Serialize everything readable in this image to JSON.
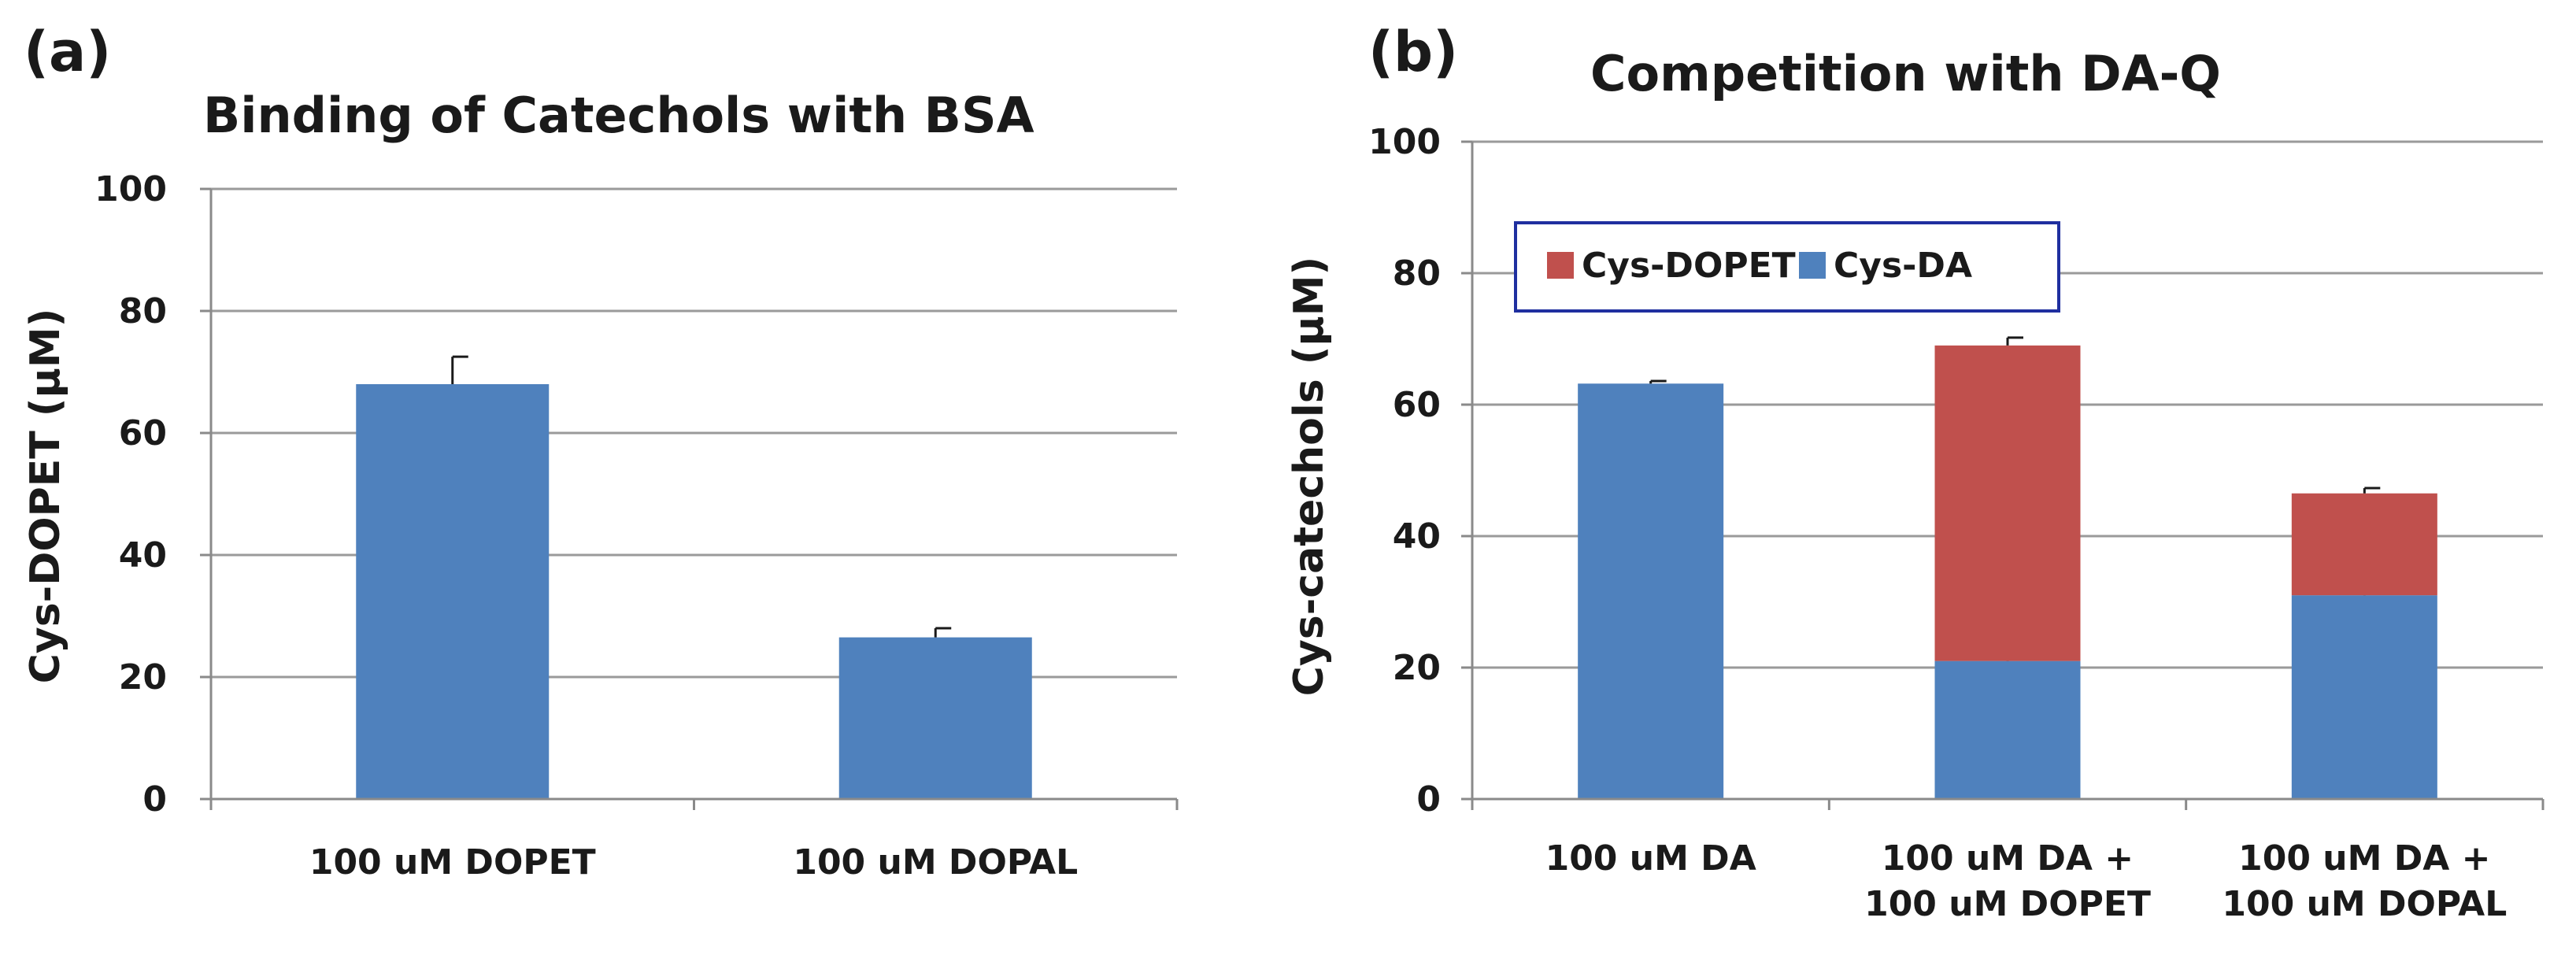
{
  "chart_data": [
    {
      "panel_label": "(a)",
      "type": "bar",
      "title": "Binding of Catechols with BSA",
      "xlabel": "",
      "ylabel": "Cys-DOPET (µM)",
      "ylim": [
        0,
        100
      ],
      "yticks": [
        0,
        20,
        40,
        60,
        80,
        100
      ],
      "grid": true,
      "categories": [
        [
          "100 uM DOPET"
        ],
        [
          "100 uM DOPAL"
        ]
      ],
      "series": [
        {
          "color": "#4f81bd",
          "values": [
            68,
            26.5
          ],
          "errors": [
            4.5,
            1.5
          ]
        }
      ]
    },
    {
      "panel_label": "(b)",
      "type": "bar",
      "stacked": true,
      "title": "Competition with DA-Q",
      "xlabel": "",
      "ylabel": "Cys-catechols (µM)",
      "ylim": [
        0,
        100
      ],
      "yticks": [
        0,
        20,
        40,
        60,
        80,
        100
      ],
      "grid": true,
      "legend_position": "top-left",
      "legend_order": [
        1,
        0
      ],
      "categories": [
        [
          "100 uM DA"
        ],
        [
          "100 uM DA +",
          "100 uM DOPET"
        ],
        [
          "100 uM DA +",
          "100 uM DOPAL"
        ]
      ],
      "series": [
        {
          "name": "Cys-DA",
          "color": "#4f81bd",
          "values": [
            63.2,
            21,
            31
          ],
          "errors": [
            0.4,
            0.8,
            0.9
          ]
        },
        {
          "name": "Cys-DOPET",
          "color": "#c0504d",
          "values": [
            0,
            48,
            15.5
          ],
          "errors": [
            0,
            1.2,
            0.8
          ]
        }
      ]
    }
  ]
}
